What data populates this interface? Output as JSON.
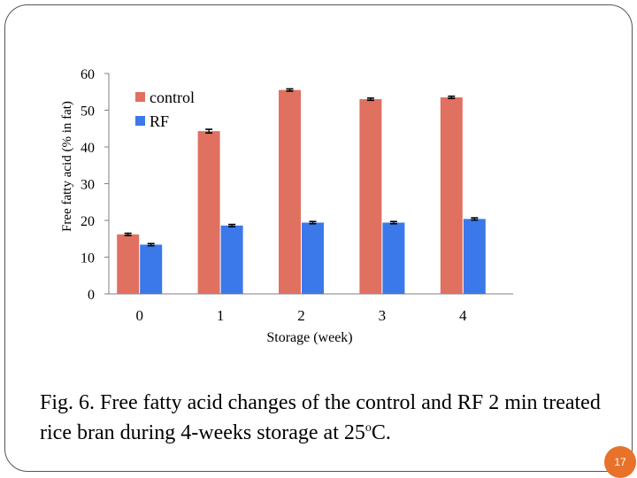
{
  "chart_data": {
    "type": "bar",
    "categories": [
      "0",
      "1",
      "2",
      "3",
      "4"
    ],
    "series": [
      {
        "name": "control",
        "values": [
          16.2,
          44.3,
          55.5,
          53.0,
          53.5
        ],
        "errors": [
          0.3,
          0.5,
          0.3,
          0.3,
          0.3
        ],
        "color": "#e07060"
      },
      {
        "name": "RF",
        "values": [
          13.4,
          18.6,
          19.4,
          19.4,
          20.4
        ],
        "errors": [
          0.3,
          0.3,
          0.3,
          0.3,
          0.3
        ],
        "color": "#3b78ea"
      }
    ],
    "xlabel": "Storage (week)",
    "ylabel": "Free fatty acid (% in fat)",
    "ylim": [
      0,
      60
    ],
    "yticks": [
      0,
      10,
      20,
      30,
      40,
      50,
      60
    ],
    "legend": "top-left",
    "grid": false
  },
  "caption": {
    "text": "Fig. 6. Free fatty acid changes of the control and RF 2 min treated rice bran during 4-weeks storage at 25",
    "superscript": "o",
    "suffix": "C."
  },
  "page_number": "17"
}
